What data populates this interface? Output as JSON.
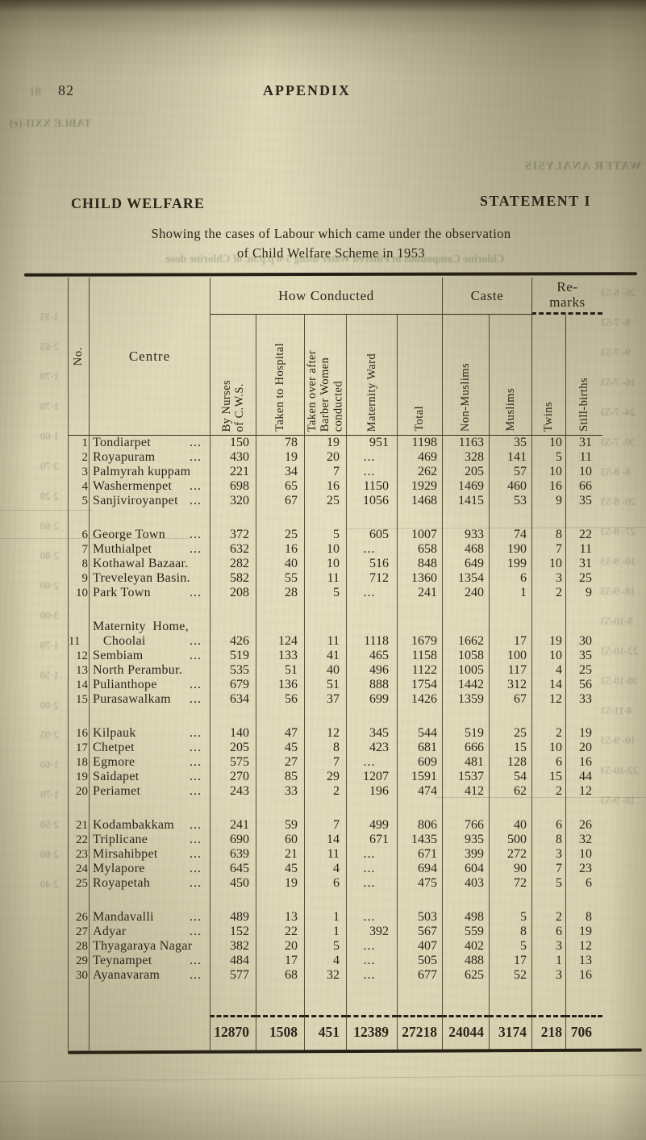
{
  "page": {
    "bleed_page_number": "18",
    "page_number": "82",
    "running_head": "APPENDIX",
    "section_title": "CHILD WELFARE",
    "statement_label": "STATEMENT I",
    "subtitle_line1": "Showing the cases of  Labour which came under  the observation",
    "subtitle_line2": "of Child Welfare Scheme in 1953"
  },
  "table": {
    "corner_headers": {
      "no": "No.",
      "centre": "Centre"
    },
    "groups": [
      {
        "label": "How Conducted"
      },
      {
        "label": "Caste"
      },
      {
        "label": "Re-\nmarks"
      }
    ],
    "columns": [
      "By Nurses\nof C.W.S.",
      "Taken to Hospital",
      "Taken over after\nBarber Women\nconducted",
      "Maternity Ward",
      "Total",
      "Non-Muslims",
      "Muslims",
      "Twins",
      "Still-births"
    ],
    "leader_dots": "...",
    "rows": [
      {
        "no": "1",
        "centre": "Tondiarpet",
        "leader": true,
        "values": [
          "150",
          "78",
          "19",
          "951",
          "1198",
          "1163",
          "35",
          "10",
          "31"
        ]
      },
      {
        "no": "2",
        "centre": "Royapuram",
        "leader": true,
        "values": [
          "430",
          "19",
          "20",
          "...",
          "469",
          "328",
          "141",
          "5",
          "11"
        ]
      },
      {
        "no": "3",
        "centre": "Palmyrah kuppam",
        "leader": false,
        "values": [
          "221",
          "34",
          "7",
          "...",
          "262",
          "205",
          "57",
          "10",
          "10"
        ]
      },
      {
        "no": "4",
        "centre": "Washermenpet",
        "leader": true,
        "values": [
          "698",
          "65",
          "16",
          "1150",
          "1929",
          "1469",
          "460",
          "16",
          "66"
        ]
      },
      {
        "no": "5",
        "centre": "Sanjiviroyanpet",
        "leader": true,
        "values": [
          "320",
          "67",
          "25",
          "1056",
          "1468",
          "1415",
          "53",
          "9",
          "35"
        ]
      },
      {
        "no": "6",
        "centre": "George Town",
        "leader": true,
        "values": [
          "372",
          "25",
          "5",
          "605",
          "1007",
          "933",
          "74",
          "8",
          "22"
        ]
      },
      {
        "no": "7",
        "centre": "Muthialpet",
        "leader": true,
        "values": [
          "632",
          "16",
          "10",
          "...",
          "658",
          "468",
          "190",
          "7",
          "11"
        ]
      },
      {
        "no": "8",
        "centre": "Kothawal Bazaar.",
        "leader": false,
        "values": [
          "282",
          "40",
          "10",
          "516",
          "848",
          "649",
          "199",
          "10",
          "31"
        ]
      },
      {
        "no": "9",
        "centre": "Treveleyan Basin.",
        "leader": false,
        "values": [
          "582",
          "55",
          "11",
          "712",
          "1360",
          "1354",
          "6",
          "3",
          "25"
        ]
      },
      {
        "no": "10",
        "centre": "Park Town",
        "leader": true,
        "values": [
          "208",
          "28",
          "5",
          "...",
          "241",
          "240",
          "1",
          "2",
          "9"
        ]
      },
      {
        "no": "11",
        "centre": "Maternity  Home,\n   Choolai",
        "leader": true,
        "values": [
          "426",
          "124",
          "11",
          "1118",
          "1679",
          "1662",
          "17",
          "19",
          "30"
        ]
      },
      {
        "no": "12",
        "centre": "Sembiam",
        "leader": true,
        "values": [
          "519",
          "133",
          "41",
          "465",
          "1158",
          "1058",
          "100",
          "10",
          "35"
        ]
      },
      {
        "no": "13",
        "centre": "North Perambur.",
        "leader": false,
        "values": [
          "535",
          "51",
          "40",
          "496",
          "1122",
          "1005",
          "117",
          "4",
          "25"
        ]
      },
      {
        "no": "14",
        "centre": "Pulianthope",
        "leader": true,
        "values": [
          "679",
          "136",
          "51",
          "888",
          "1754",
          "1442",
          "312",
          "14",
          "56"
        ]
      },
      {
        "no": "15",
        "centre": "Purasawalkam",
        "leader": true,
        "values": [
          "634",
          "56",
          "37",
          "699",
          "1426",
          "1359",
          "67",
          "12",
          "33"
        ]
      },
      {
        "no": "16",
        "centre": "Kilpauk",
        "leader": true,
        "values": [
          "140",
          "47",
          "12",
          "345",
          "544",
          "519",
          "25",
          "2",
          "19"
        ]
      },
      {
        "no": "17",
        "centre": "Chetpet",
        "leader": true,
        "values": [
          "205",
          "45",
          "8",
          "423",
          "681",
          "666",
          "15",
          "10",
          "20"
        ]
      },
      {
        "no": "18",
        "centre": "Egmore",
        "leader": true,
        "values": [
          "575",
          "27",
          "7",
          "...",
          "609",
          "481",
          "128",
          "6",
          "16"
        ]
      },
      {
        "no": "19",
        "centre": "Saidapet",
        "leader": true,
        "values": [
          "270",
          "85",
          "29",
          "1207",
          "1591",
          "1537",
          "54",
          "15",
          "44"
        ]
      },
      {
        "no": "20",
        "centre": "Periamet",
        "leader": true,
        "values": [
          "243",
          "33",
          "2",
          "196",
          "474",
          "412",
          "62",
          "2",
          "12"
        ]
      },
      {
        "no": "21",
        "centre": "Kodambakkam",
        "leader": true,
        "values": [
          "241",
          "59",
          "7",
          "499",
          "806",
          "766",
          "40",
          "6",
          "26"
        ]
      },
      {
        "no": "22",
        "centre": "Triplicane",
        "leader": true,
        "values": [
          "690",
          "60",
          "14",
          "671",
          "1435",
          "935",
          "500",
          "8",
          "32"
        ]
      },
      {
        "no": "23",
        "centre": "Mirsahibpet",
        "leader": true,
        "values": [
          "639",
          "21",
          "11",
          "...",
          "671",
          "399",
          "272",
          "3",
          "10"
        ]
      },
      {
        "no": "24",
        "centre": "Mylapore",
        "leader": true,
        "values": [
          "645",
          "45",
          "4",
          "...",
          "694",
          "604",
          "90",
          "7",
          "23"
        ]
      },
      {
        "no": "25",
        "centre": "Royapetah",
        "leader": true,
        "values": [
          "450",
          "19",
          "6",
          "...",
          "475",
          "403",
          "72",
          "5",
          "6"
        ]
      },
      {
        "no": "26",
        "centre": "Mandavalli",
        "leader": true,
        "values": [
          "489",
          "13",
          "1",
          "...",
          "503",
          "498",
          "5",
          "2",
          "8"
        ]
      },
      {
        "no": "27",
        "centre": "Adyar",
        "leader": true,
        "values": [
          "152",
          "22",
          "1",
          "392",
          "567",
          "559",
          "8",
          "6",
          "19"
        ]
      },
      {
        "no": "28",
        "centre": "Thyagaraya Nagar",
        "leader": false,
        "values": [
          "382",
          "20",
          "5",
          "...",
          "407",
          "402",
          "5",
          "3",
          "12"
        ]
      },
      {
        "no": "29",
        "centre": "Teynampet",
        "leader": true,
        "values": [
          "484",
          "17",
          "4",
          "...",
          "505",
          "488",
          "17",
          "1",
          "13"
        ]
      },
      {
        "no": "30",
        "centre": "Ayanavaram",
        "leader": true,
        "values": [
          "577",
          "68",
          "32",
          "...",
          "677",
          "625",
          "52",
          "3",
          "16"
        ]
      }
    ],
    "totals": [
      "12870",
      "1508",
      "451",
      "12389",
      "27218",
      "24044",
      "3174",
      "218",
      "706"
    ]
  },
  "bleed_through": {
    "left_table_label": "TABLE XXII-(e)",
    "right_heading": "WATER ANALYSIS",
    "caption": "Chlorine Compounds in Filtered Water using 5·0 p.p.m. of Chlorine dose",
    "left_margin_entries": [
      "1·35",
      "2·65",
      "1·70",
      "1·70",
      "1·60",
      "3·70",
      "2·20",
      "2·60",
      "2·80",
      "2·60",
      "3·00",
      "1·70",
      "1·50",
      "2·00",
      "2·05",
      "1·60",
      "1·70",
      "2·50",
      "2·80",
      "2·40"
    ],
    "right_margin_entries": [
      "26- 6-53",
      "8- 7-53",
      "9- 7-53",
      "16- 7-53",
      "24- 7-53",
      "30- 7-53",
      "6- 8-53",
      "20- 8-53",
      "27- 8-53",
      "10- 9-53",
      "18- 9-53",
      "9-10-53",
      "22-10-53",
      "30-10-53",
      "4-11-53",
      "10- 9-53",
      "22-10-53",
      "10- 9-53"
    ]
  }
}
